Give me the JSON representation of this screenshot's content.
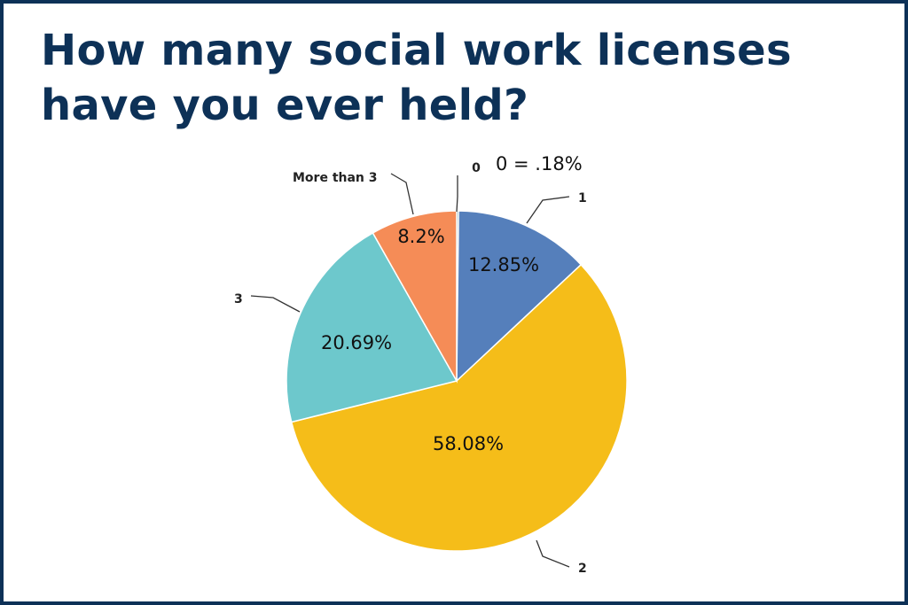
{
  "title": "How many social work licenses have you ever held?",
  "chart_data": {
    "type": "pie",
    "title": "How many social work licenses have you ever held?",
    "start_angle_deg": 0,
    "direction": "clockwise",
    "slices": [
      {
        "category": "0",
        "value": 0.18,
        "label": "",
        "color": "#2e7d8c"
      },
      {
        "category": "1",
        "value": 12.85,
        "label": "12.85%",
        "color": "#557fbb"
      },
      {
        "category": "2",
        "value": 58.08,
        "label": "58.08%",
        "color": "#f5bd19"
      },
      {
        "category": "3",
        "value": 20.69,
        "label": "20.69%",
        "color": "#6dc8cc"
      },
      {
        "category": "More than 3",
        "value": 8.2,
        "label": "8.2%",
        "color": "#f58c57"
      }
    ],
    "annotation": "0 = .18%"
  }
}
